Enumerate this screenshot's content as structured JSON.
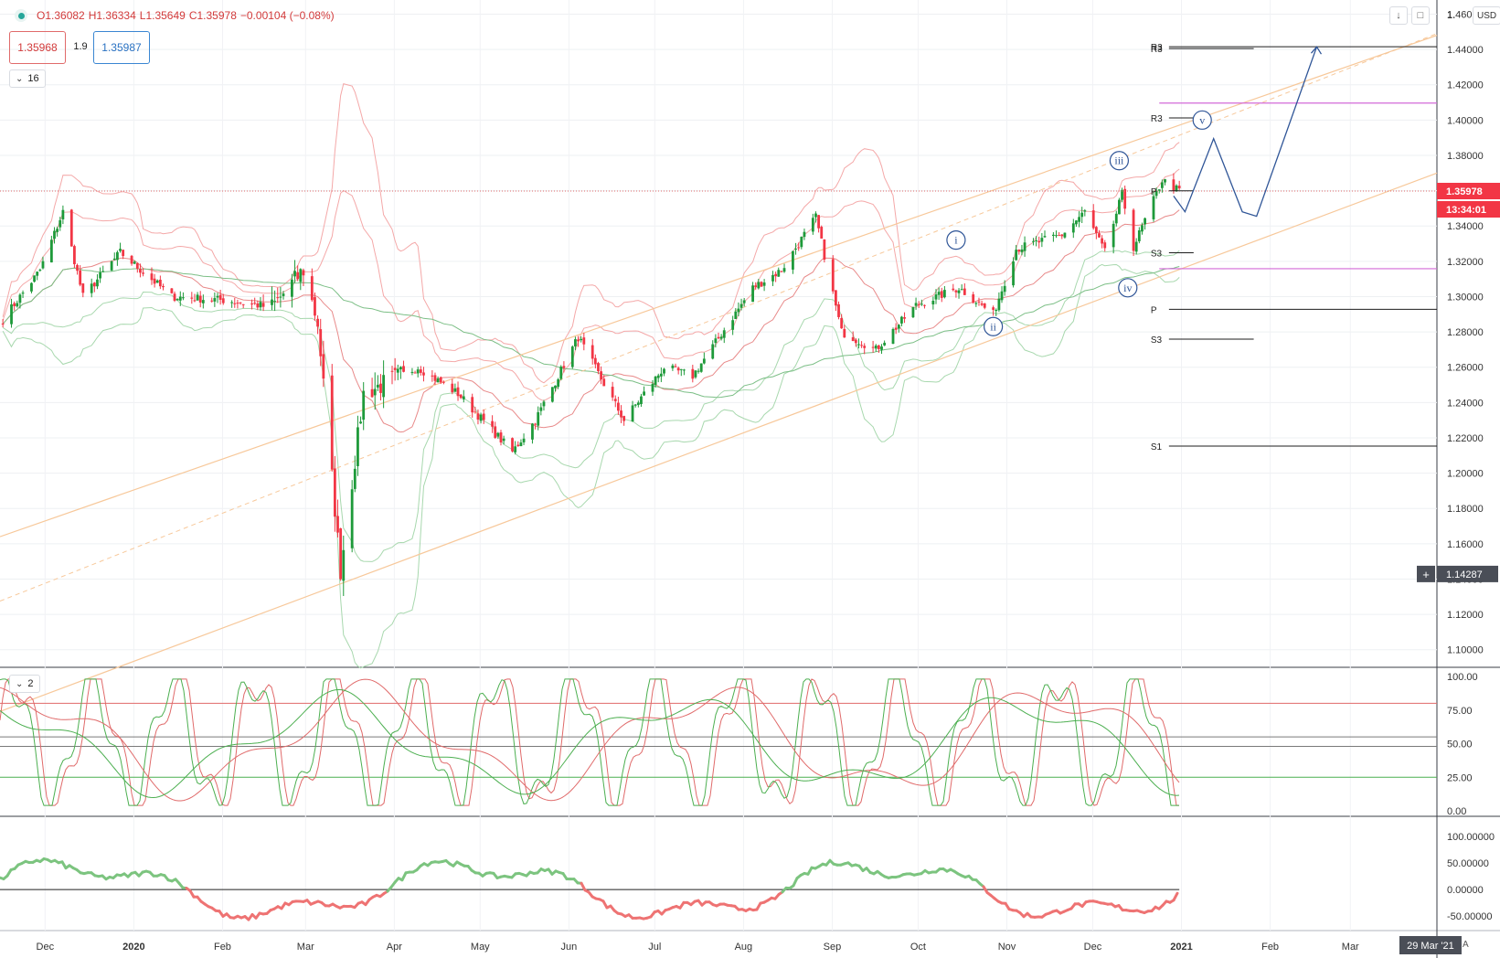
{
  "header": {
    "open": "O1.36082",
    "high": "H1.36334",
    "low": "L1.35649",
    "close": "C1.35978",
    "change": "−0.00104 (−0.08%)"
  },
  "quote": {
    "sell": "1.35968",
    "spread": "1.9",
    "buy": "1.35987"
  },
  "panels": {
    "main_collapse": "16",
    "osc_collapse": "2"
  },
  "currency": "USD",
  "auto_label": "A",
  "price_axis": {
    "ticks": [
      "1.46000",
      "1.44000",
      "1.42000",
      "1.40000",
      "1.38000",
      "1.36000",
      "1.34000",
      "1.32000",
      "1.30000",
      "1.28000",
      "1.26000",
      "1.24000",
      "1.22000",
      "1.20000",
      "1.18000",
      "1.16000",
      "1.14000",
      "1.12000",
      "1.10000"
    ],
    "partial_top": "1.",
    "last_price": "1.35978",
    "countdown": "13:34:01",
    "crosshair": "1.14287",
    "colors": {
      "down": "#f23645",
      "up": "#1e9a3a",
      "tag_dark": "#4a4e57"
    }
  },
  "osc_axis": {
    "ticks": [
      "100.00",
      "75.00",
      "50.00",
      "25.00",
      "0.00"
    ]
  },
  "mom_axis": {
    "ticks": [
      "100.00000",
      "50.00000",
      "0.00000",
      "-50.00000"
    ]
  },
  "time_axis": {
    "labels": [
      "Dec",
      "2020",
      "Feb",
      "Mar",
      "Apr",
      "May",
      "Jun",
      "Jul",
      "Aug",
      "Sep",
      "Oct",
      "Nov",
      "Dec",
      "2021",
      "Feb",
      "Mar"
    ],
    "highlight": "29 Mar '21"
  },
  "pivots": [
    "R3",
    "R3",
    "R3",
    "P",
    "S3",
    "P",
    "S3",
    "S1"
  ],
  "waves": [
    "i",
    "ii",
    "iii",
    "iv",
    "v"
  ],
  "chart_data": {
    "type": "candlestick",
    "x_range": [
      "2019-11-21",
      "2021-04-06"
    ],
    "y_range": [
      1.09,
      1.468
    ],
    "last_price": 1.35978,
    "pivot_levels": [
      {
        "label": "R3",
        "price": 1.4415
      },
      {
        "label": "R3",
        "price": 1.4405
      },
      {
        "label": "R3",
        "price": 1.4012
      },
      {
        "label": "P",
        "price": 1.3599
      },
      {
        "label": "S3",
        "price": 1.3248
      },
      {
        "label": "P",
        "price": 1.2928
      },
      {
        "label": "S3",
        "price": 1.2759
      },
      {
        "label": "S1",
        "price": 1.2153
      }
    ],
    "magenta_levels": [
      1.4096,
      1.3158
    ],
    "projection_path": [
      [
        "2021-01-04",
        1.357
      ],
      [
        "2021-01-08",
        1.348
      ],
      [
        "2021-01-18",
        1.3895
      ],
      [
        "2021-01-28",
        1.348
      ],
      [
        "2021-02-02",
        1.3455
      ],
      [
        "2021-02-23",
        1.4415
      ]
    ],
    "wave_labels": [
      {
        "label": "i",
        "date": "2020-10-20",
        "price": 1.332
      },
      {
        "label": "ii",
        "date": "2020-11-02",
        "price": 1.283
      },
      {
        "label": "iii",
        "date": "2020-12-16",
        "price": 1.377
      },
      {
        "label": "iv",
        "date": "2020-12-19",
        "price": 1.305
      },
      {
        "label": "v",
        "date": "2021-01-14",
        "price": 1.4
      }
    ],
    "close_anchors": [
      [
        "2019-11-22",
        1.287
      ],
      [
        "2019-12-05",
        1.315
      ],
      [
        "2019-12-13",
        1.348
      ],
      [
        "2019-12-20",
        1.3
      ],
      [
        "2020-01-02",
        1.325
      ],
      [
        "2020-01-20",
        1.3
      ],
      [
        "2020-02-07",
        1.298
      ],
      [
        "2020-02-24",
        1.294
      ],
      [
        "2020-03-06",
        1.315
      ],
      [
        "2020-03-11",
        1.285
      ],
      [
        "2020-03-19",
        1.145
      ],
      [
        "2020-03-27",
        1.245
      ],
      [
        "2020-04-15",
        1.26
      ],
      [
        "2020-04-29",
        1.245
      ],
      [
        "2020-05-18",
        1.212
      ],
      [
        "2020-05-26",
        1.23
      ],
      [
        "2020-06-10",
        1.277
      ],
      [
        "2020-06-26",
        1.23
      ],
      [
        "2020-07-10",
        1.26
      ],
      [
        "2020-07-20",
        1.255
      ],
      [
        "2020-08-10",
        1.305
      ],
      [
        "2020-08-20",
        1.315
      ],
      [
        "2020-09-01",
        1.345
      ],
      [
        "2020-09-10",
        1.28
      ],
      [
        "2020-09-22",
        1.27
      ],
      [
        "2020-10-06",
        1.295
      ],
      [
        "2020-10-21",
        1.305
      ],
      [
        "2020-11-02",
        1.29
      ],
      [
        "2020-11-10",
        1.327
      ],
      [
        "2020-11-26",
        1.335
      ],
      [
        "2020-12-04",
        1.348
      ],
      [
        "2020-12-11",
        1.325
      ],
      [
        "2020-12-17",
        1.358
      ],
      [
        "2020-12-21",
        1.328
      ],
      [
        "2020-12-31",
        1.366
      ],
      [
        "2021-01-06",
        1.3598
      ]
    ]
  }
}
